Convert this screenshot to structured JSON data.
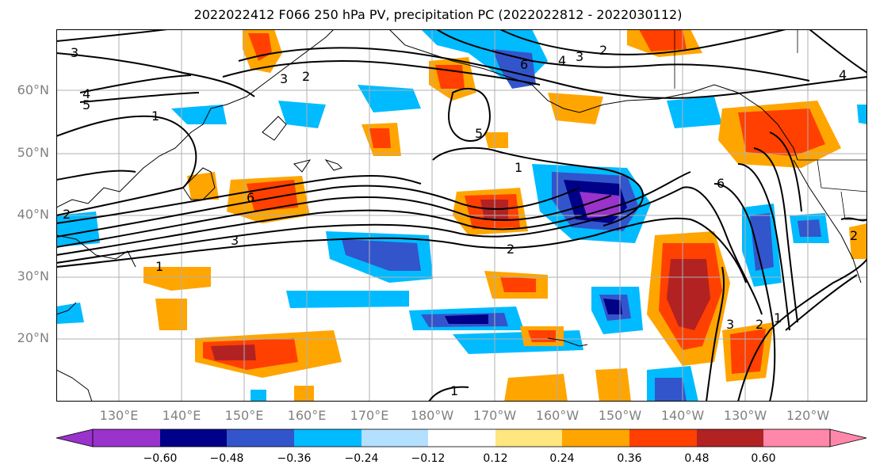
{
  "title": "2022022412 F066 250 hPa PV, precipitation PC (2022022812 - 2022030112)",
  "lat_labels": [
    "60°N",
    "50°N",
    "40°N",
    "30°N",
    "20°N"
  ],
  "lon_labels": [
    "130°E",
    "140°E",
    "150°E",
    "160°E",
    "170°E",
    "180°W",
    "170°W",
    "160°W",
    "150°W",
    "140°W",
    "130°W",
    "120°W"
  ],
  "colorbar": {
    "ticks": [
      "−0.60",
      "−0.48",
      "−0.36",
      "−0.24",
      "−0.12",
      "0.12",
      "0.24",
      "0.36",
      "0.48",
      "0.60"
    ],
    "colors": [
      "#9933cc",
      "#000088",
      "#3355cc",
      "#00bbff",
      "#b3e0ff",
      "#ffffff",
      "#ffe680",
      "#ffa500",
      "#ff4000",
      "#b22222",
      "#ff88aa"
    ]
  },
  "contour_labels": {
    "l1": "3",
    "l2": "4",
    "l3": "5",
    "l4": "1",
    "l5": "6",
    "l6": "3",
    "l7": "1",
    "l8": "3",
    "l9": "2",
    "l10": "6",
    "l11": "5",
    "l12": "1",
    "l13": "2",
    "l14": "3",
    "l15": "2",
    "l16": "6",
    "l17": "2",
    "l18": "3",
    "l19": "4",
    "l20": "1",
    "l21": "2",
    "l22": "1",
    "l23": "4",
    "l24": "2"
  }
}
